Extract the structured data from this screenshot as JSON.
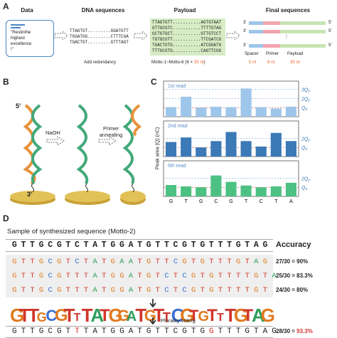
{
  "panel_a": {
    "letter": "A",
    "headers": {
      "data": "Data",
      "dna": "DNA sequences",
      "payload": "Payload",
      "final": "Final sequences"
    },
    "data_text": [
      "\"Restinthe",
      "highest",
      "excellence",
      "!\""
    ],
    "dna_rows": [
      "TTAGTGT.........GGATGTT",
      "TGGATGG.........CTTTCGA",
      "TGACTGT.........GTTTAGT"
    ],
    "dna_caption": "Add redundancy",
    "payload_rows": [
      "TTAGTGTT...........AGTGTAAT",
      "GTTGCGTC...........TTTTGTAG",
      "GCTGTGCT...........GTTGTCCT",
      "TGTGCGTT...........TTCGATCG",
      "TGACTGTG...........ATCGGATG",
      "TTTGCGTG...........CAGTTCGG"
    ],
    "payload_caption": "Motto-1~Motto-6 (6 × ",
    "payload_caption_red": "30 nt",
    "payload_caption_end": ")",
    "final_labels": {
      "p3": "3'",
      "p5": "5'",
      "spacer": "Spacer",
      "primer": "Primer",
      "payload": "Payload"
    },
    "final_lengths": {
      "spacer": "5 nt",
      "primer": "8 nt",
      "payload": "30 nt"
    }
  },
  "panel_b": {
    "letter": "B",
    "five_prime": "5'",
    "three_prime": "3'",
    "step1": "NaOH",
    "step2a": "Primer",
    "step2b": "annealing"
  },
  "panel_c": {
    "letter": "C",
    "ylabel": "Peak area (Q) (nC)",
    "colors": {
      "read1": "#9ec5ea",
      "read2": "#3b79b7",
      "read5": "#4cc183"
    },
    "chart_data": [
      {
        "type": "bar",
        "title": "1st read",
        "categories": [
          "G",
          "T",
          "G",
          "C",
          "G",
          "T",
          "C",
          "T",
          "A"
        ],
        "values": [
          1.05,
          2.2,
          1.0,
          1.1,
          1.05,
          3.1,
          1.05,
          0.9,
          1.1
        ],
        "ylim": [
          0,
          3.6
        ],
        "ref_labels": [
          "3Q₀",
          "2Q₀",
          "Q₀"
        ],
        "ref_values": [
          3.0,
          2.0,
          1.0
        ]
      },
      {
        "type": "bar",
        "title": "2nd read",
        "categories": [
          "G",
          "T",
          "G",
          "C",
          "G",
          "T",
          "C",
          "T",
          "A"
        ],
        "values": [
          1.6,
          2.1,
          1.0,
          1.7,
          2.7,
          1.7,
          1.1,
          2.6,
          1.7
        ],
        "ylim": [
          0,
          3.6
        ],
        "ref_labels": [
          "2Q₀",
          "Q₀"
        ],
        "ref_values": [
          2.0,
          1.0
        ]
      },
      {
        "type": "bar",
        "title": "5th read",
        "categories": [
          "G",
          "T",
          "G",
          "C",
          "G",
          "T",
          "C",
          "T",
          "A"
        ],
        "values": [
          1.25,
          1.1,
          1.0,
          2.3,
          1.6,
          1.2,
          1.0,
          1.1,
          1.5
        ],
        "ylim": [
          0,
          3.6
        ],
        "ref_labels": [
          "2Q₀",
          "Q₀"
        ],
        "ref_values": [
          2.0,
          1.0
        ]
      }
    ],
    "tick_labels": [
      "G",
      "T",
      "G",
      "C",
      "G",
      "T",
      "C",
      "T",
      "A"
    ]
  },
  "panel_d": {
    "letter": "D",
    "subtitle": "Sample of synthesized sequence (Motto-2)",
    "reference": "GTTGCGTCTATGGATGTTCGTGTTTGTAG",
    "accuracy_label": "Accuracy",
    "reads": [
      {
        "seq": "GTTGCGTCTATGAATGTTCGTGTTTGTAG",
        "acc": "27/30 = 90%"
      },
      {
        "seq": "GTTGCGTTTATGGATGTCTCGTGTTTTGTA",
        "acc": "25/30 = 83.3%"
      },
      {
        "seq": "GTTGCGTTTATGGATGTCTCGTGTTTTGT",
        "acc": "24/30 = 80%"
      }
    ],
    "logo_seq": "GTTGCGTTTATGGATGTTCGTGTTTGTAG",
    "voting_label": "Plurality voting",
    "final_seq": "GTTGCGTTTATGGATGTTCGTGGTTTGTAG",
    "final_acc_prefix": "28/30 = ",
    "final_acc_red": "93.3%",
    "base_colors": {
      "A": "#2e9e5b",
      "C": "#3a6fd0",
      "G": "#e07a1f",
      "T": "#d0352b",
      "ref": "#222"
    }
  }
}
